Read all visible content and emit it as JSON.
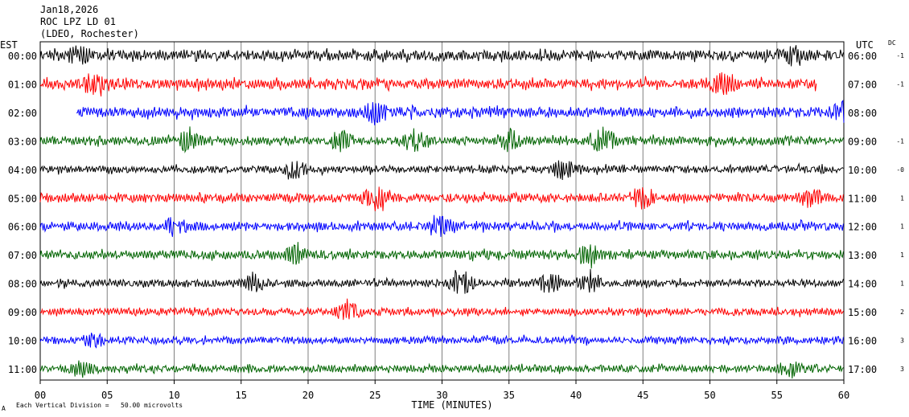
{
  "header": {
    "date": "Jan18,2026",
    "station": "ROC LPZ LD 01",
    "network": "(LDEO, Rochester)"
  },
  "left_axis_label": "EST",
  "right_axis_label": "UTC",
  "dc_label": "DC",
  "footer": {
    "xlabel": "TIME (MINUTES)",
    "scale_note": "Each Vertical Division =   50.00 microvolts",
    "corner_mark": "A"
  },
  "colors": {
    "black": "#000000",
    "red": "#ff0000",
    "blue": "#0000ff",
    "green": "#006400",
    "grid": "#808080"
  },
  "chart_data": {
    "type": "line",
    "xlim": [
      0,
      60
    ],
    "x_ticks": [
      "00",
      "05",
      "10",
      "15",
      "20",
      "25",
      "30",
      "35",
      "40",
      "45",
      "50",
      "55",
      "60"
    ],
    "rows": [
      {
        "est": "00:00",
        "utc": "06:00",
        "dc": "-1",
        "color": "black",
        "start": 0,
        "end": 60,
        "amp": 7,
        "events": [
          [
            3,
            9
          ],
          [
            56,
            9
          ]
        ]
      },
      {
        "est": "01:00",
        "utc": "07:00",
        "dc": "-1",
        "color": "red",
        "start": 0,
        "end": 58,
        "amp": 7,
        "events": [
          [
            4,
            9
          ],
          [
            51,
            10
          ]
        ]
      },
      {
        "est": "02:00",
        "utc": "08:00",
        "dc": "",
        "color": "blue",
        "start": 2.7,
        "end": 60,
        "amp": 7,
        "events": [
          [
            25,
            10
          ],
          [
            60,
            10
          ]
        ]
      },
      {
        "est": "03:00",
        "utc": "09:00",
        "dc": "-1",
        "color": "green",
        "start": 0,
        "end": 60,
        "amp": 6,
        "events": [
          [
            11,
            11
          ],
          [
            22.5,
            10
          ],
          [
            28,
            11
          ],
          [
            35,
            11
          ],
          [
            42,
            14
          ]
        ]
      },
      {
        "est": "04:00",
        "utc": "10:00",
        "dc": "-0",
        "color": "black",
        "start": 0,
        "end": 60,
        "amp": 5,
        "events": [
          [
            19,
            10
          ],
          [
            39,
            11
          ]
        ]
      },
      {
        "est": "05:00",
        "utc": "11:00",
        "dc": "1",
        "color": "red",
        "start": 0,
        "end": 60,
        "amp": 6,
        "events": [
          [
            25,
            12
          ],
          [
            45,
            11
          ],
          [
            57.5,
            10
          ]
        ]
      },
      {
        "est": "06:00",
        "utc": "12:00",
        "dc": "1",
        "color": "blue",
        "start": 0,
        "end": 60,
        "amp": 6,
        "events": [
          [
            10,
            9
          ],
          [
            30,
            10
          ]
        ]
      },
      {
        "est": "07:00",
        "utc": "13:00",
        "dc": "1",
        "color": "green",
        "start": 0,
        "end": 60,
        "amp": 6,
        "events": [
          [
            19,
            9
          ],
          [
            41,
            9
          ]
        ]
      },
      {
        "est": "08:00",
        "utc": "14:00",
        "dc": "1",
        "color": "black",
        "start": 0,
        "end": 60,
        "amp": 5,
        "events": [
          [
            16,
            9
          ],
          [
            31.5,
            14
          ],
          [
            38,
            10
          ],
          [
            41,
            9
          ]
        ]
      },
      {
        "est": "09:00",
        "utc": "15:00",
        "dc": "2",
        "color": "red",
        "start": 0,
        "end": 60,
        "amp": 5,
        "events": [
          [
            23,
            10
          ]
        ]
      },
      {
        "est": "10:00",
        "utc": "16:00",
        "dc": "3",
        "color": "blue",
        "start": 0,
        "end": 60,
        "amp": 5,
        "events": [
          [
            4,
            8
          ]
        ]
      },
      {
        "est": "11:00",
        "utc": "17:00",
        "dc": "3",
        "color": "green",
        "start": 0,
        "end": 60,
        "amp": 5,
        "events": [
          [
            3,
            8
          ],
          [
            56,
            8
          ]
        ]
      }
    ]
  }
}
